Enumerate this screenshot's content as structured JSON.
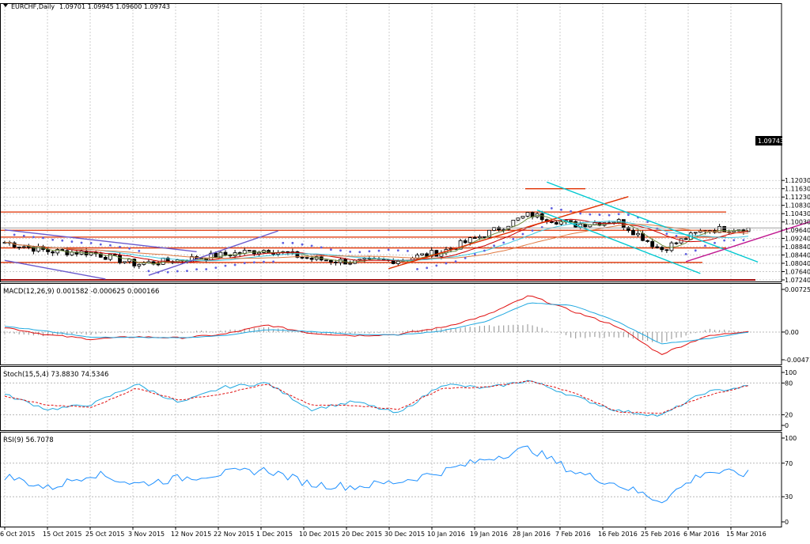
{
  "header": {
    "symbol_label": "EURCHF,Daily",
    "ohlc_label": "1.09701 1.09945 1.09600 1.09743",
    "current_price": "1.09743"
  },
  "price_panel": {
    "y_ticks": [
      "1.12030",
      "1.11630",
      "1.11230",
      "1.10830",
      "1.10430",
      "1.10030",
      "1.09640",
      "1.09240",
      "1.08840",
      "1.08440",
      "1.08040",
      "1.07640",
      "1.07240"
    ]
  },
  "macd_panel": {
    "label": "MACD(12,26,9) 0.001582 -0.000625 0.000166",
    "y_ticks": [
      "0.007251",
      "0.00",
      "-0.004712"
    ]
  },
  "stoch_panel": {
    "label": "Stoch(15,5,4) 73.8830 74.5346",
    "y_ticks": [
      "100",
      "80",
      "20",
      "0"
    ]
  },
  "rsi_panel": {
    "label": "RSI(9) 56.7078",
    "y_ticks": [
      "100",
      "70",
      "30",
      "0"
    ]
  },
  "x_axis": {
    "labels": [
      "6 Oct 2015",
      "15 Oct 2015",
      "25 Oct 2015",
      "3 Nov 2015",
      "12 Nov 2015",
      "22 Nov 2015",
      "1 Dec 2015",
      "10 Dec 2015",
      "20 Dec 2015",
      "30 Dec 2015",
      "10 Jan 2016",
      "19 Jan 2016",
      "28 Jan 2016",
      "7 Feb 2016",
      "16 Feb 2016",
      "25 Feb 2016",
      "6 Mar 2016",
      "15 Mar 2016"
    ]
  },
  "colors": {
    "grid": "#b8b8b8",
    "macd_line": "#e01010",
    "signal_line": "#20a8e0",
    "histogram": "#a0a0a0",
    "rsi_line": "#1e90ff",
    "sma_fast": "#6e8b3d",
    "ma_cyan": "#40c8e0",
    "ma_slow": "#e07840",
    "ma_red": "#c80000",
    "parabolic_sar": "#6060e0",
    "support_resistance": "#e03000",
    "channel_blue": "#6a5acd",
    "channel_cyan": "#00c8d0",
    "trend_magenta": "#c01890"
  },
  "chart_data": [
    {
      "type": "candlestick",
      "title": "EURCHF,Daily",
      "x": [
        "6 Oct 2015",
        "15 Oct 2015",
        "25 Oct 2015",
        "3 Nov 2015",
        "12 Nov 2015",
        "22 Nov 2015",
        "1 Dec 2015",
        "10 Dec 2015",
        "20 Dec 2015",
        "30 Dec 2015",
        "10 Jan 2016",
        "19 Jan 2016",
        "28 Jan 2016",
        "7 Feb 2016",
        "16 Feb 2016",
        "25 Feb 2016",
        "6 Mar 2016",
        "15 Mar 2016"
      ],
      "close": [
        1.0905,
        1.0862,
        1.0855,
        1.08,
        1.082,
        1.0845,
        1.087,
        1.0825,
        1.081,
        1.082,
        1.086,
        1.0945,
        1.104,
        1.099,
        1.101,
        1.087,
        1.0965,
        1.0974
      ],
      "last": {
        "open": 1.09701,
        "high": 1.09945,
        "low": 1.096,
        "close": 1.09743
      },
      "ylim": [
        1.0724,
        1.2003
      ],
      "horizontal_levels": [
        1.1163,
        1.1051,
        1.0963,
        1.093,
        1.0878,
        1.0808,
        1.0724
      ],
      "grid": true
    },
    {
      "type": "line",
      "title": "MACD(12,26,9) 0.001582 -0.000625 0.000166",
      "x": [
        "6 Oct 2015",
        "15 Oct 2015",
        "25 Oct 2015",
        "3 Nov 2015",
        "12 Nov 2015",
        "22 Nov 2015",
        "1 Dec 2015",
        "10 Dec 2015",
        "20 Dec 2015",
        "30 Dec 2015",
        "10 Jan 2016",
        "19 Jan 2016",
        "28 Jan 2016",
        "7 Feb 2016",
        "16 Feb 2016",
        "25 Feb 2016",
        "6 Mar 2016",
        "15 Mar 2016"
      ],
      "series": [
        {
          "values": [
            0.0008,
            -0.0005,
            -0.0012,
            -0.0008,
            -0.001,
            -0.0004,
            0.0012,
            -0.0002,
            -0.0006,
            -0.0004,
            0.0008,
            0.0028,
            0.0062,
            0.0035,
            0.001,
            -0.0038,
            -0.0008,
            0.0002
          ]
        },
        {
          "values": [
            0.001,
            0.0001,
            -0.0009,
            -0.0009,
            -0.001,
            -0.0006,
            0.0004,
            0.0001,
            -0.0004,
            -0.0005,
            0.0002,
            0.0018,
            0.005,
            0.0045,
            0.0018,
            -0.002,
            -0.0012,
            0.0
          ]
        }
      ],
      "ylim": [
        -0.004712,
        0.007251
      ],
      "grid": true
    },
    {
      "type": "line",
      "title": "Stoch(15,5,4) 73.8830 74.5346",
      "x": [
        "6 Oct 2015",
        "15 Oct 2015",
        "25 Oct 2015",
        "3 Nov 2015",
        "12 Nov 2015",
        "22 Nov 2015",
        "1 Dec 2015",
        "10 Dec 2015",
        "20 Dec 2015",
        "30 Dec 2015",
        "10 Jan 2016",
        "19 Jan 2016",
        "28 Jan 2016",
        "7 Feb 2016",
        "16 Feb 2016",
        "25 Feb 2016",
        "6 Mar 2016",
        "15 Mar 2016"
      ],
      "series": [
        {
          "values": [
            58,
            30,
            40,
            78,
            42,
            72,
            80,
            30,
            45,
            22,
            78,
            70,
            85,
            55,
            28,
            18,
            62,
            74
          ]
        },
        {
          "values": [
            55,
            38,
            34,
            70,
            48,
            60,
            78,
            38,
            38,
            30,
            70,
            72,
            84,
            62,
            26,
            22,
            55,
            75
          ]
        }
      ],
      "ylim": [
        0,
        100
      ],
      "levels": [
        80,
        20
      ],
      "grid": true
    },
    {
      "type": "line",
      "title": "RSI(9) 56.7078",
      "x": [
        "6 Oct 2015",
        "15 Oct 2015",
        "25 Oct 2015",
        "3 Nov 2015",
        "12 Nov 2015",
        "22 Nov 2015",
        "1 Dec 2015",
        "10 Dec 2015",
        "20 Dec 2015",
        "30 Dec 2015",
        "10 Jan 2016",
        "19 Jan 2016",
        "28 Jan 2016",
        "7 Feb 2016",
        "16 Feb 2016",
        "25 Feb 2016",
        "6 Mar 2016",
        "15 Mar 2016"
      ],
      "series": [
        {
          "values": [
            55,
            40,
            58,
            45,
            52,
            58,
            62,
            45,
            42,
            48,
            60,
            75,
            88,
            60,
            45,
            25,
            60,
            57
          ]
        }
      ],
      "ylim": [
        0,
        100
      ],
      "levels": [
        70,
        30
      ],
      "grid": true
    }
  ]
}
